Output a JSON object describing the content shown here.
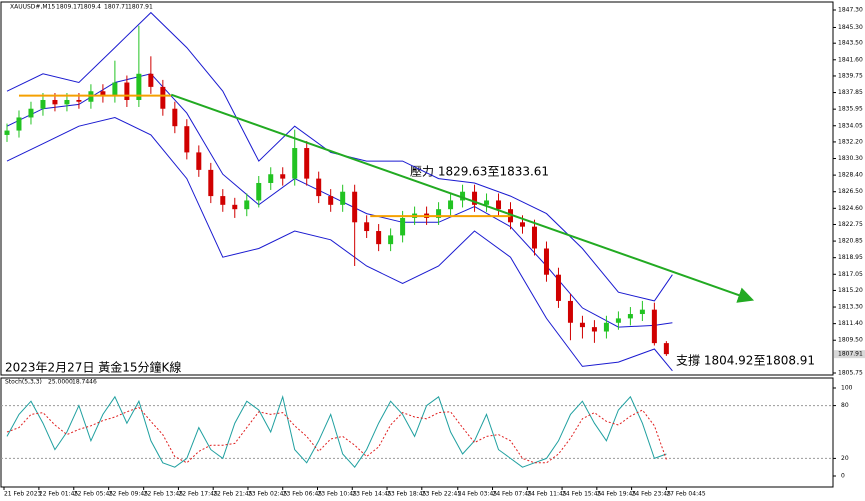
{
  "chart_data": {
    "type": "candlestick",
    "symbol": "XAUUSD#,M15",
    "annotations": [
      "壓力 1829.63至1833.61",
      "支撐 1804.92至1808.91",
      "2023年2月27日 黃金15分鐘K線"
    ],
    "candles": {
      "open": [
        1833,
        1833.5,
        1835,
        1836,
        1837,
        1836.5,
        1837,
        1836.8,
        1838,
        1837.5,
        1839,
        1837,
        1840,
        1838.5,
        1836,
        1834,
        1831,
        1829,
        1826,
        1825,
        1824.5,
        1825.5,
        1827.5,
        1828.5,
        1828,
        1831.5,
        1828,
        1826,
        1825,
        1826.5,
        1823,
        1822,
        1820.5,
        1821.5,
        1823.5,
        1824,
        1823.5,
        1824.5,
        1825.5,
        1826.5,
        1825,
        1825.5,
        1824.5,
        1823,
        1822.5,
        1820,
        1817,
        1814,
        1811.5,
        1811,
        1810.5,
        1811.5,
        1812,
        1812.5,
        1813,
        1809.17
      ],
      "high": [
        1834.3,
        1835.8,
        1836.8,
        1837.8,
        1837.8,
        1837.8,
        1837.8,
        1838.8,
        1838.8,
        1841.5,
        1839.8,
        1845.5,
        1842,
        1839.3,
        1836.8,
        1834.8,
        1831.8,
        1829.8,
        1826.8,
        1825.8,
        1826.3,
        1828.3,
        1829.3,
        1829.3,
        1833.6,
        1832.3,
        1828.8,
        1826.8,
        1827.3,
        1827.3,
        1823.8,
        1822.8,
        1822.3,
        1824.3,
        1824.8,
        1824.8,
        1825.3,
        1826.3,
        1827.3,
        1827.3,
        1826.3,
        1826.3,
        1825.3,
        1823.8,
        1823.3,
        1820.8,
        1817.8,
        1814.8,
        1812.3,
        1811.8,
        1812.3,
        1812.8,
        1813.3,
        1814,
        1813.8,
        1809.4
      ],
      "low": [
        1832.2,
        1832.7,
        1834.2,
        1835.2,
        1835.7,
        1835.7,
        1836,
        1836,
        1836.7,
        1836.7,
        1836.2,
        1836.2,
        1837.7,
        1835.2,
        1833.2,
        1830.2,
        1828.2,
        1825.2,
        1824.2,
        1823.5,
        1823.7,
        1824.7,
        1826.7,
        1827.2,
        1827.2,
        1827.2,
        1825.2,
        1824.2,
        1824.2,
        1818,
        1821.2,
        1819.7,
        1819.7,
        1820.7,
        1822.7,
        1822.7,
        1822.7,
        1823.7,
        1824.7,
        1824.2,
        1824.2,
        1823.7,
        1822.2,
        1821.7,
        1819.2,
        1816.2,
        1813.2,
        1809.5,
        1809.7,
        1809.2,
        1809.7,
        1810.7,
        1811.2,
        1811.7,
        1808.9,
        1807.71
      ],
      "close": [
        1833.5,
        1835,
        1836,
        1837,
        1836.5,
        1837,
        1836.8,
        1838,
        1837.5,
        1839,
        1837,
        1840,
        1838.5,
        1836,
        1834,
        1831,
        1829,
        1826,
        1825,
        1824.5,
        1825.5,
        1827.5,
        1828.5,
        1828,
        1831.5,
        1828,
        1826,
        1825,
        1826.5,
        1823,
        1822,
        1820.5,
        1821.5,
        1823.5,
        1824,
        1823.5,
        1824.5,
        1825.5,
        1826.5,
        1825,
        1825.5,
        1824.5,
        1823,
        1822.5,
        1820,
        1817,
        1814,
        1811.5,
        1811,
        1810.5,
        1811.5,
        1812,
        1812.5,
        1813,
        1809.17,
        1807.91
      ],
      "up_color": "#22c322",
      "down_color": "#d00000"
    },
    "bands": {
      "x": [
        0,
        3,
        6,
        9,
        12,
        15,
        18,
        21,
        24,
        27,
        30,
        33,
        36,
        39,
        42,
        45,
        48,
        51,
        54,
        55.5
      ],
      "color": "#1a1ad0",
      "upper": [
        1838,
        1840,
        1839,
        1843,
        1847,
        1843,
        1838,
        1830,
        1834,
        1831,
        1830,
        1830,
        1828,
        1827.5,
        1826,
        1824,
        1820,
        1815,
        1814,
        1817
      ],
      "middle": [
        1834,
        1836,
        1836.5,
        1839,
        1840,
        1835.5,
        1828.5,
        1825,
        1828,
        1826,
        1824,
        1823,
        1823,
        1824.8,
        1822.5,
        1818,
        1813.2,
        1811,
        1811.2,
        1811.5
      ],
      "lower": [
        1830,
        1832,
        1834,
        1835,
        1833,
        1828,
        1819,
        1820,
        1822,
        1821,
        1818,
        1816,
        1818,
        1822,
        1819,
        1812,
        1806.5,
        1807,
        1808.5,
        1806
      ]
    },
    "trendlines": [
      {
        "color": "#f5a000",
        "x": [
          1,
          13.7
        ],
        "y": [
          1837.5,
          1837.5
        ]
      },
      {
        "color": "#f5a000",
        "x": [
          30.3,
          42
        ],
        "y": [
          1823.7,
          1823.7
        ]
      },
      {
        "color": "#22aa22",
        "x": [
          13.7,
          62
        ],
        "y": [
          1837.6,
          1814.2
        ],
        "arrow": true
      }
    ],
    "xlim": [
      -0.5,
      68.9
    ],
    "ylim": [
      1805.75,
      1847.3
    ],
    "yticks": [
      {
        "value": 1847.3,
        "label": "1847.30"
      },
      {
        "value": 1845.3,
        "label": "1845.30"
      },
      {
        "value": 1843.5,
        "label": "1843.50"
      },
      {
        "value": 1841.6,
        "label": "1841.60"
      },
      {
        "value": 1839.75,
        "label": "1839.75"
      },
      {
        "value": 1837.85,
        "label": "1837.85"
      },
      {
        "value": 1835.95,
        "label": "1835.95"
      },
      {
        "value": 1834.05,
        "label": "1834.05"
      },
      {
        "value": 1832.2,
        "label": "1832.20"
      },
      {
        "value": 1830.3,
        "label": "1830.30"
      },
      {
        "value": 1828.4,
        "label": "1828.40"
      },
      {
        "value": 1826.5,
        "label": "1826.50"
      },
      {
        "value": 1824.6,
        "label": "1824.60"
      },
      {
        "value": 1822.75,
        "label": "1822.75"
      },
      {
        "value": 1820.85,
        "label": "1820.85"
      },
      {
        "value": 1818.95,
        "label": "1818.95"
      },
      {
        "value": 1817.05,
        "label": "1817.05"
      },
      {
        "value": 1815.2,
        "label": "1815.20"
      },
      {
        "value": 1813.3,
        "label": "1813.30"
      },
      {
        "value": 1811.4,
        "label": "1811.40"
      },
      {
        "value": 1809.5,
        "label": "1809.50"
      },
      {
        "value": 1805.75,
        "label": "1805.75"
      }
    ],
    "xticks": [
      {
        "value": -0.25,
        "label": "21 Feb 2023"
      },
      {
        "value": 2.66,
        "label": "22 Feb 01:45"
      },
      {
        "value": 5.57,
        "label": "22 Feb 05:45"
      },
      {
        "value": 8.48,
        "label": "22 Feb 09:45"
      },
      {
        "value": 11.4,
        "label": "22 Feb 13:45"
      },
      {
        "value": 14.3,
        "label": "22 Feb 17:45"
      },
      {
        "value": 17.2,
        "label": "22 Feb 21:45"
      },
      {
        "value": 20.1,
        "label": "23 Feb 02:45"
      },
      {
        "value": 23,
        "label": "23 Feb 06:45"
      },
      {
        "value": 25.9,
        "label": "23 Feb 10:45"
      },
      {
        "value": 28.8,
        "label": "23 Feb 14:45"
      },
      {
        "value": 31.7,
        "label": "23 Feb 18:45"
      },
      {
        "value": 34.6,
        "label": "23 Feb 22:45"
      },
      {
        "value": 37.6,
        "label": "24 Feb 03:45"
      },
      {
        "value": 40.5,
        "label": "24 Feb 07:45"
      },
      {
        "value": 43.4,
        "label": "24 Feb 11:45"
      },
      {
        "value": 46.3,
        "label": "24 Feb 15:45"
      },
      {
        "value": 49.2,
        "label": "24 Feb 19:45"
      },
      {
        "value": 52.1,
        "label": "24 Feb 23:45"
      },
      {
        "value": 55,
        "label": "27 Feb 04:45"
      }
    ],
    "stoch": {
      "name": "Stoch(5,3,3)",
      "legend_values": [
        {
          "value": 25,
          "label": "25.0000"
        },
        {
          "value": 18.7446,
          "label": "18.7446"
        }
      ],
      "main_color": "#20a0a0",
      "signal_color": "#e02020",
      "main": [
        45,
        70,
        85,
        60,
        30,
        50,
        80,
        40,
        70,
        90,
        60,
        85,
        40,
        15,
        10,
        20,
        55,
        30,
        20,
        60,
        85,
        75,
        50,
        90,
        30,
        15,
        40,
        70,
        25,
        10,
        30,
        60,
        85,
        70,
        45,
        80,
        90,
        50,
        25,
        40,
        70,
        30,
        20,
        10,
        15,
        20,
        40,
        70,
        85,
        60,
        40,
        75,
        90,
        60,
        20,
        25
      ],
      "signal": [
        50,
        55,
        70,
        72,
        58,
        47,
        53,
        57,
        63,
        67,
        73,
        78,
        62,
        47,
        22,
        15,
        28,
        35,
        35,
        37,
        55,
        73,
        70,
        72,
        57,
        45,
        28,
        42,
        45,
        35,
        22,
        33,
        58,
        72,
        67,
        65,
        72,
        73,
        55,
        38,
        45,
        47,
        40,
        20,
        15,
        15,
        25,
        43,
        65,
        72,
        62,
        58,
        68,
        75,
        57,
        18.7446
      ],
      "ylim": [
        0,
        100
      ],
      "yticks": [
        100,
        80,
        20,
        0
      ],
      "levels": [
        80,
        20
      ]
    }
  }
}
